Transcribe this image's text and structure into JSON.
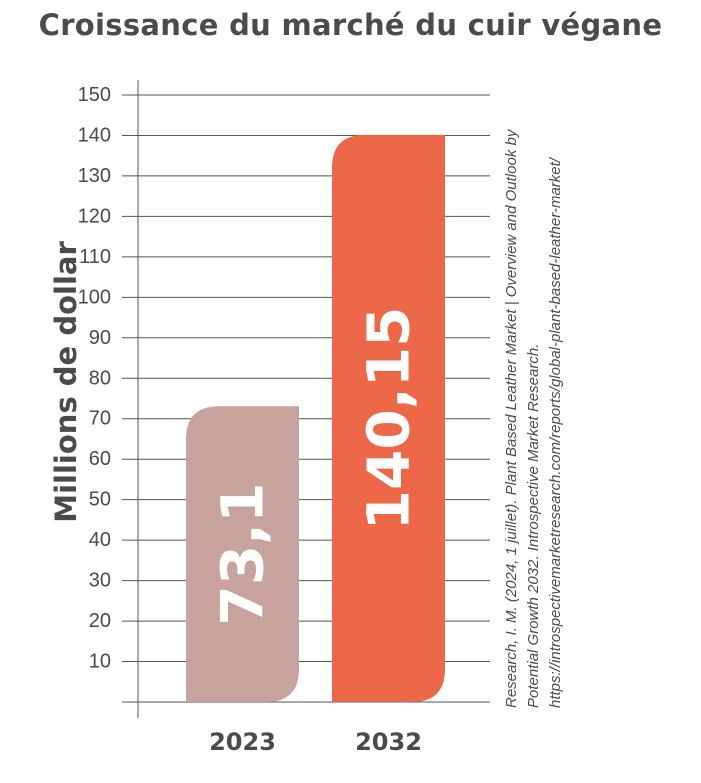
{
  "chart_data": {
    "type": "bar",
    "title": "Croissance du marché du cuir végane",
    "ylabel": "Millions de dollar",
    "xlabel": "",
    "categories": [
      "2023",
      "2032"
    ],
    "values": [
      73.1,
      140.15
    ],
    "value_labels": [
      "73,1",
      "140,15"
    ],
    "bar_colors": [
      "#c8a39d",
      "#ec6849"
    ],
    "ylim": [
      0,
      150
    ],
    "yticks": [
      10,
      20,
      30,
      40,
      50,
      60,
      70,
      80,
      90,
      100,
      110,
      120,
      130,
      140,
      150
    ],
    "grid": true,
    "source": "Research, I. M. (2024, 1 juillet). Plant Based Leather Market | Overview and Outlook by Potential Growth 2032. Introspective Market Research. https://introspectivemarketresearch.com/reports/global-plant-based-leather-market/"
  }
}
